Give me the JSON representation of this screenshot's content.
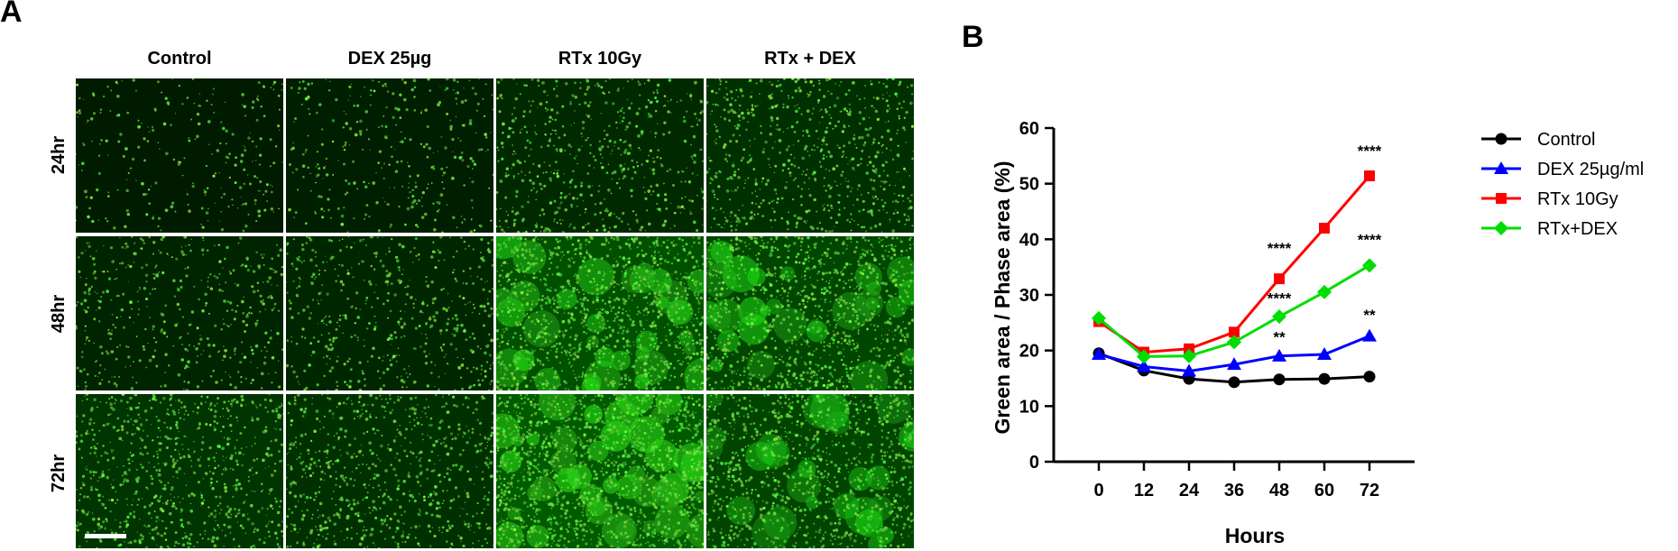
{
  "panel_a": {
    "letter": "A",
    "columns": [
      "Control",
      "DEX 25µg",
      "RTx 10Gy",
      "RTx + DEX"
    ],
    "rows": [
      "24hr",
      "48hr",
      "72hr"
    ],
    "green_density": [
      [
        0.1,
        0.14,
        0.3,
        0.38
      ],
      [
        0.22,
        0.26,
        0.85,
        0.72
      ],
      [
        0.45,
        0.4,
        1.0,
        0.68
      ]
    ]
  },
  "panel_b": {
    "letter": "B"
  },
  "chart_data": {
    "type": "line",
    "xlabel": "Hours",
    "ylabel": "Green area / Phase area (%)",
    "x": [
      0,
      12,
      24,
      36,
      48,
      60,
      72
    ],
    "xticks": [
      "0",
      "12",
      "24",
      "36",
      "48",
      "60",
      "72"
    ],
    "ylim": [
      0,
      60
    ],
    "yticks": [
      "0",
      "10",
      "20",
      "30",
      "40",
      "50",
      "60"
    ],
    "legend_position": "top-right",
    "series": [
      {
        "name": "Control",
        "color": "#000000",
        "marker": "circle",
        "values": [
          19.5,
          16.4,
          14.9,
          14.3,
          14.8,
          14.9,
          15.3
        ]
      },
      {
        "name": "DEX 25µg/ml",
        "color": "#0000ff",
        "marker": "triangle",
        "values": [
          19.3,
          17.1,
          16.3,
          17.5,
          19.0,
          19.3,
          22.6
        ]
      },
      {
        "name": "RTx 10Gy",
        "color": "#ff0000",
        "marker": "square",
        "values": [
          25.2,
          19.7,
          20.3,
          23.3,
          32.9,
          42.0,
          51.4
        ]
      },
      {
        "name": "RTx+DEX",
        "color": "#00dd00",
        "marker": "diamond",
        "values": [
          25.8,
          18.9,
          19.0,
          21.5,
          26.1,
          30.5,
          35.3
        ]
      }
    ],
    "annotations": [
      {
        "x": 48,
        "y": 37.5,
        "text": "****"
      },
      {
        "x": 48,
        "y": 28.5,
        "text": "****"
      },
      {
        "x": 48,
        "y": 21.5,
        "text": "**"
      },
      {
        "x": 72,
        "y": 55.0,
        "text": "****"
      },
      {
        "x": 72,
        "y": 39.0,
        "text": "****"
      },
      {
        "x": 72,
        "y": 25.5,
        "text": "**"
      }
    ]
  }
}
